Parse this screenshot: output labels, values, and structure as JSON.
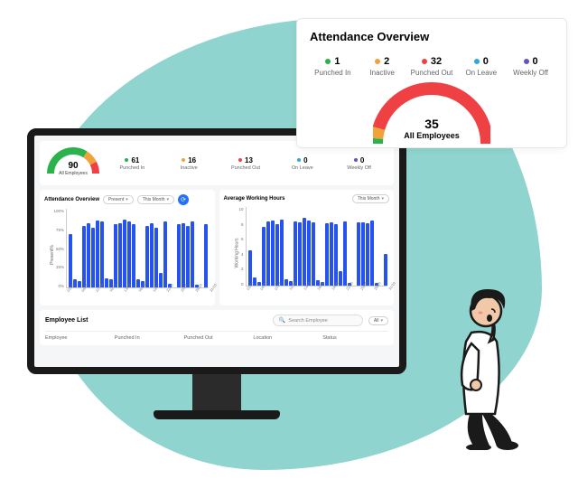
{
  "overview": {
    "title": "Attendance Overview",
    "stats": [
      {
        "value": 1,
        "label": "Punched In",
        "color": "#2bb24c"
      },
      {
        "value": 2,
        "label": "Inactive",
        "color": "#f2a23a"
      },
      {
        "value": 32,
        "label": "Punched Out",
        "color": "#ef4144"
      },
      {
        "value": 0,
        "label": "On Leave",
        "color": "#2aa9e0"
      },
      {
        "value": 0,
        "label": "Weekly Off",
        "color": "#6a4fc2"
      }
    ],
    "gauge": {
      "total": 35,
      "total_label": "All Employees",
      "segments": [
        {
          "color": "#2bb24c",
          "fraction": 0.03
        },
        {
          "color": "#f2a23a",
          "fraction": 0.06
        },
        {
          "color": "#ef4144",
          "fraction": 0.91
        }
      ],
      "stroke_width": 14
    }
  },
  "dashboard": {
    "gauge": {
      "total": 90,
      "total_label": "All Employees",
      "segments": [
        {
          "color": "#2bb24c",
          "fraction": 0.68
        },
        {
          "color": "#f2a23a",
          "fraction": 0.17
        },
        {
          "color": "#ef4144",
          "fraction": 0.15
        }
      ],
      "stroke_width": 8
    },
    "stats": [
      {
        "value": 61,
        "label": "Punched In",
        "color": "#2bb24c"
      },
      {
        "value": 16,
        "label": "Inactive",
        "color": "#f2a23a"
      },
      {
        "value": 13,
        "label": "Punched Out",
        "color": "#ef4144"
      },
      {
        "value": 0,
        "label": "On Leave",
        "color": "#2aa9e0"
      },
      {
        "value": 0,
        "label": "Weekly Off",
        "color": "#6a4fc2"
      }
    ],
    "chart1": {
      "title": "Attendance Overview",
      "filter1": "Present",
      "filter2": "This Month",
      "ylabel": "Present%",
      "yticks": [
        "100%",
        "75%",
        "50%",
        "25%",
        "0%"
      ],
      "ylim": [
        0,
        100
      ],
      "bar_color": "#2653ef",
      "xticks": [
        "01/10",
        "04/10",
        "07/10",
        "10/10",
        "13/10",
        "16/10",
        "19/10",
        "22/10",
        "25/10",
        "28/10",
        "31/10"
      ],
      "values": [
        68,
        10,
        8,
        78,
        82,
        76,
        85,
        84,
        12,
        10,
        80,
        82,
        86,
        84,
        80,
        10,
        8,
        78,
        82,
        76,
        18,
        84,
        5,
        0,
        80,
        82,
        78,
        84,
        4,
        0,
        80
      ]
    },
    "chart2": {
      "title": "Average Working Hours",
      "filter1": "This Month",
      "ylabel": "Working Hours",
      "yticks": [
        "10",
        "8",
        "6",
        "4",
        "2",
        "0"
      ],
      "ylim": [
        0,
        10
      ],
      "bar_color": "#2653ef",
      "xticks": [
        "01/10",
        "04/10",
        "07/10",
        "10/10",
        "13/10",
        "16/10",
        "19/10",
        "22/10",
        "25/10",
        "28/10",
        "31/10"
      ],
      "values": [
        4.5,
        1,
        0.5,
        7.5,
        8.2,
        8.3,
        7.8,
        8.4,
        0.8,
        0.6,
        8.2,
        8.1,
        8.6,
        8.3,
        8.0,
        0.7,
        0.5,
        7.9,
        8.1,
        7.8,
        1.8,
        8.2,
        0.4,
        0,
        8.0,
        8.1,
        7.9,
        8.3,
        0.3,
        0,
        4.0
      ]
    },
    "employee_list": {
      "title": "Employee List",
      "search_placeholder": "Search Employee",
      "filter": "All",
      "columns": [
        "Employee",
        "Punched In",
        "Punched Out",
        "Location",
        "Status"
      ]
    }
  },
  "colors": {
    "blob": "#8fd4ce",
    "monitor_frame": "#1a1a1a",
    "screen_bg": "#f5f6f8",
    "card_bg": "#ffffff",
    "accent": "#2470ff"
  }
}
